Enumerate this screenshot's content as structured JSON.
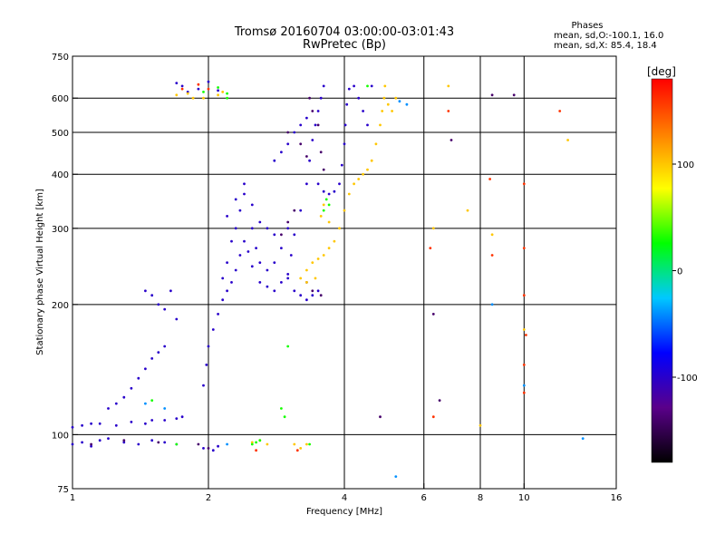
{
  "chart_data": {
    "type": "scatter",
    "title": "Tromsø 20160704 03:00:00-03:01:43",
    "subtitle": "RwPretec (Bp)",
    "xlabel": "Frequency [MHz]",
    "ylabel": "Stationary phase Virtual Height [km]",
    "x_scale": "log",
    "y_scale": "log",
    "xlim": [
      1,
      16
    ],
    "ylim": [
      75,
      750
    ],
    "x_ticks": [
      1,
      2,
      4,
      6,
      8,
      10,
      16
    ],
    "y_ticks": [
      75,
      100,
      200,
      300,
      400,
      500,
      600,
      750
    ],
    "x_gridlines": [
      2,
      4,
      6,
      8,
      10
    ],
    "y_gridlines": [
      100,
      200,
      300,
      400,
      500,
      600
    ],
    "grid": true,
    "legend": {
      "title": "Phases",
      "line1": "mean, sd,O:-100.1, 16.0",
      "line2": "mean, sd,X:  85.4, 18.4"
    },
    "colorbar": {
      "label": "[deg]",
      "range": [
        -180,
        180
      ],
      "ticks": [
        100,
        0,
        -100
      ],
      "colors": [
        "#000000",
        "#5a008a",
        "#0000ff",
        "#00c8ff",
        "#00ff00",
        "#ffff00",
        "#ff8000",
        "#ff0000"
      ]
    },
    "series": [
      {
        "phase_deg": -100,
        "points": [
          [
            1.0,
            95
          ],
          [
            1.05,
            96
          ],
          [
            1.1,
            94
          ],
          [
            1.15,
            97
          ],
          [
            1.2,
            98
          ],
          [
            1.3,
            96
          ],
          [
            1.4,
            95
          ],
          [
            1.5,
            97
          ],
          [
            1.6,
            96
          ],
          [
            1.7,
            95
          ],
          [
            1.0,
            104
          ],
          [
            1.05,
            105
          ],
          [
            1.1,
            106
          ],
          [
            1.15,
            106
          ],
          [
            1.25,
            105
          ],
          [
            1.35,
            107
          ],
          [
            1.45,
            106
          ],
          [
            1.5,
            108
          ],
          [
            1.6,
            108
          ],
          [
            1.7,
            109
          ],
          [
            1.75,
            110
          ],
          [
            1.2,
            115
          ],
          [
            1.25,
            118
          ],
          [
            1.3,
            122
          ],
          [
            1.35,
            128
          ],
          [
            1.4,
            135
          ],
          [
            1.45,
            142
          ],
          [
            1.5,
            150
          ],
          [
            1.55,
            155
          ],
          [
            1.6,
            160
          ],
          [
            1.45,
            215
          ],
          [
            1.5,
            210
          ],
          [
            1.55,
            200
          ],
          [
            1.6,
            195
          ],
          [
            1.65,
            215
          ],
          [
            1.7,
            185
          ],
          [
            1.95,
            93
          ],
          [
            2.05,
            92
          ],
          [
            2.1,
            94
          ],
          [
            1.95,
            130
          ],
          [
            1.98,
            145
          ],
          [
            2.0,
            160
          ],
          [
            2.05,
            175
          ],
          [
            2.1,
            190
          ],
          [
            2.15,
            205
          ],
          [
            2.2,
            215
          ],
          [
            2.25,
            225
          ],
          [
            2.3,
            240
          ],
          [
            2.35,
            260
          ],
          [
            2.4,
            280
          ],
          [
            2.45,
            265
          ],
          [
            2.5,
            245
          ],
          [
            2.6,
            225
          ],
          [
            2.7,
            220
          ],
          [
            2.8,
            215
          ],
          [
            2.9,
            225
          ],
          [
            3.0,
            235
          ],
          [
            3.05,
            260
          ],
          [
            3.1,
            290
          ],
          [
            3.2,
            330
          ],
          [
            3.3,
            380
          ],
          [
            3.35,
            430
          ],
          [
            3.4,
            480
          ],
          [
            3.45,
            520
          ],
          [
            3.5,
            560
          ],
          [
            3.55,
            600
          ],
          [
            3.6,
            640
          ],
          [
            2.15,
            230
          ],
          [
            2.2,
            250
          ],
          [
            2.25,
            280
          ],
          [
            2.3,
            300
          ],
          [
            2.35,
            330
          ],
          [
            2.4,
            360
          ],
          [
            2.5,
            300
          ],
          [
            2.55,
            270
          ],
          [
            2.6,
            250
          ],
          [
            2.7,
            240
          ],
          [
            2.8,
            250
          ],
          [
            2.9,
            270
          ],
          [
            3.0,
            300
          ],
          [
            2.2,
            320
          ],
          [
            2.3,
            350
          ],
          [
            2.4,
            380
          ],
          [
            2.5,
            340
          ],
          [
            2.6,
            310
          ],
          [
            2.7,
            300
          ],
          [
            2.8,
            290
          ],
          [
            2.8,
            430
          ],
          [
            2.9,
            450
          ],
          [
            3.0,
            470
          ],
          [
            3.1,
            500
          ],
          [
            3.2,
            520
          ],
          [
            3.3,
            540
          ],
          [
            3.5,
            380
          ],
          [
            3.6,
            365
          ],
          [
            3.7,
            360
          ],
          [
            3.8,
            365
          ],
          [
            3.9,
            380
          ],
          [
            3.95,
            420
          ],
          [
            4.0,
            470
          ],
          [
            4.02,
            520
          ],
          [
            4.05,
            580
          ],
          [
            4.1,
            630
          ],
          [
            4.2,
            640
          ],
          [
            4.3,
            600
          ],
          [
            4.4,
            560
          ],
          [
            4.5,
            520
          ],
          [
            4.6,
            640
          ],
          [
            3.0,
            230
          ],
          [
            3.1,
            215
          ],
          [
            3.2,
            210
          ],
          [
            3.3,
            205
          ],
          [
            3.4,
            210
          ],
          [
            3.5,
            215
          ],
          [
            1.7,
            650
          ],
          [
            1.75,
            640
          ],
          [
            1.8,
            620
          ],
          [
            1.9,
            630
          ],
          [
            2.0,
            655
          ],
          [
            2.1,
            625
          ]
        ]
      },
      {
        "phase_deg": -140,
        "points": [
          [
            1.1,
            95
          ],
          [
            1.3,
            97
          ],
          [
            1.55,
            96
          ],
          [
            1.9,
            95
          ],
          [
            2.0,
            93
          ],
          [
            3.0,
            500
          ],
          [
            3.2,
            470
          ],
          [
            3.3,
            440
          ],
          [
            3.35,
            600
          ],
          [
            3.4,
            560
          ],
          [
            3.5,
            520
          ],
          [
            3.55,
            450
          ],
          [
            3.6,
            410
          ],
          [
            2.9,
            290
          ],
          [
            3.0,
            310
          ],
          [
            3.1,
            330
          ],
          [
            3.55,
            210
          ],
          [
            3.4,
            215
          ],
          [
            3.3,
            225
          ],
          [
            6.3,
            190
          ],
          [
            6.5,
            120
          ],
          [
            8.5,
            610
          ],
          [
            9.5,
            610
          ],
          [
            6.9,
            480
          ],
          [
            4.8,
            110
          ]
        ]
      },
      {
        "phase_deg": 100,
        "points": [
          [
            3.3,
            240
          ],
          [
            3.4,
            250
          ],
          [
            3.5,
            255
          ],
          [
            3.6,
            260
          ],
          [
            3.7,
            270
          ],
          [
            3.8,
            280
          ],
          [
            3.9,
            300
          ],
          [
            4.0,
            330
          ],
          [
            4.1,
            360
          ],
          [
            4.2,
            380
          ],
          [
            4.3,
            390
          ],
          [
            4.4,
            400
          ],
          [
            4.5,
            410
          ],
          [
            4.6,
            430
          ],
          [
            4.7,
            470
          ],
          [
            4.8,
            520
          ],
          [
            4.85,
            560
          ],
          [
            4.9,
            600
          ],
          [
            4.92,
            640
          ],
          [
            3.2,
            230
          ],
          [
            3.3,
            225
          ],
          [
            3.45,
            230
          ],
          [
            3.55,
            320
          ],
          [
            3.6,
            340
          ],
          [
            3.7,
            310
          ],
          [
            5.0,
            580
          ],
          [
            5.1,
            560
          ],
          [
            5.2,
            600
          ],
          [
            3.1,
            95
          ],
          [
            3.2,
            93
          ],
          [
            3.3,
            95
          ],
          [
            2.5,
            96
          ],
          [
            2.6,
            97
          ],
          [
            2.7,
            95
          ],
          [
            1.7,
            610
          ],
          [
            1.8,
            615
          ],
          [
            1.85,
            600
          ],
          [
            1.95,
            600
          ],
          [
            2.1,
            610
          ],
          [
            2.15,
            620
          ],
          [
            6.3,
            300
          ],
          [
            7.5,
            330
          ],
          [
            8.0,
            105
          ],
          [
            8.5,
            290
          ],
          [
            10.0,
            175
          ],
          [
            6.8,
            640
          ],
          [
            12.5,
            480
          ]
        ]
      },
      {
        "phase_deg": 30,
        "points": [
          [
            1.7,
            95
          ],
          [
            2.5,
            95
          ],
          [
            2.55,
            96
          ],
          [
            2.6,
            97
          ],
          [
            3.35,
            95
          ],
          [
            1.95,
            620
          ],
          [
            2.1,
            635
          ],
          [
            2.2,
            600
          ],
          [
            2.2,
            615
          ],
          [
            3.6,
            330
          ],
          [
            3.65,
            350
          ],
          [
            3.7,
            340
          ],
          [
            1.5,
            120
          ],
          [
            2.9,
            115
          ],
          [
            2.95,
            110
          ],
          [
            3.0,
            160
          ],
          [
            4.5,
            640
          ]
        ]
      },
      {
        "phase_deg": -40,
        "points": [
          [
            1.45,
            118
          ],
          [
            1.6,
            115
          ],
          [
            2.2,
            95
          ],
          [
            5.3,
            590
          ],
          [
            5.5,
            580
          ],
          [
            8.5,
            200
          ],
          [
            10.0,
            130
          ],
          [
            13.5,
            98
          ],
          [
            5.2,
            80
          ]
        ]
      },
      {
        "phase_deg": 160,
        "points": [
          [
            1.75,
            630
          ],
          [
            1.9,
            645
          ],
          [
            2.0,
            630
          ],
          [
            2.55,
            92
          ],
          [
            3.15,
            92
          ],
          [
            6.2,
            270
          ],
          [
            6.8,
            560
          ],
          [
            8.4,
            390
          ],
          [
            8.5,
            260
          ],
          [
            10.0,
            380
          ],
          [
            10.0,
            270
          ],
          [
            10.0,
            210
          ],
          [
            10.0,
            145
          ],
          [
            10.0,
            125
          ],
          [
            12.0,
            560
          ],
          [
            6.3,
            110
          ],
          [
            10.1,
            170
          ]
        ]
      }
    ]
  }
}
